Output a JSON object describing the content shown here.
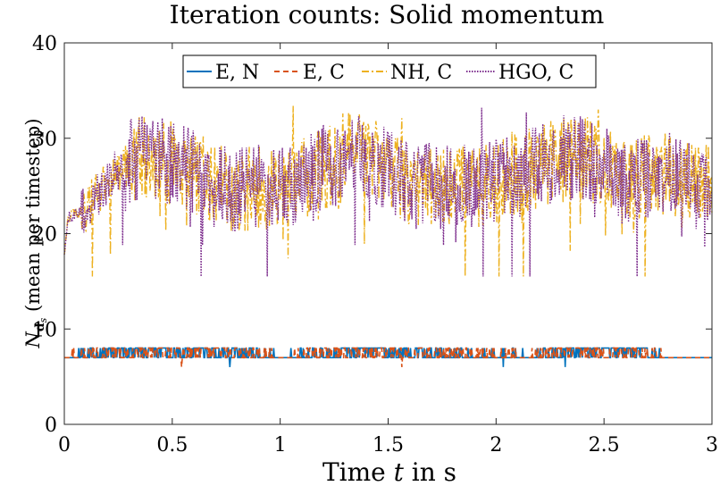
{
  "chart_data": {
    "type": "line",
    "title": "Iteration counts: Solid momentum",
    "xlabel_parts": {
      "pre": "Time ",
      "var": "t",
      "post": " in s"
    },
    "ylabel_parts": {
      "var": "N",
      "sub": "d",
      "subsub": "s",
      "post": " (mean per timestep)"
    },
    "xlim": [
      0,
      3
    ],
    "ylim": [
      0,
      40
    ],
    "xticks": [
      0,
      0.5,
      1,
      1.5,
      2,
      2.5,
      3
    ],
    "xtick_labels": [
      "0",
      "0.5",
      "1",
      "1.5",
      "2",
      "2.5",
      "3"
    ],
    "yticks": [
      0,
      10,
      20,
      30,
      40
    ],
    "ytick_labels": [
      "0",
      "10",
      "20",
      "30",
      "40"
    ],
    "grid": false,
    "legend_position": "top",
    "series": [
      {
        "name": "E, N",
        "color": "#0072BD",
        "dash": "solid",
        "baseline": 7,
        "profile": [
          [
            0,
            7
          ],
          [
            0.3,
            7.4
          ],
          [
            0.9,
            7.3
          ],
          [
            1.0,
            7
          ],
          [
            1.3,
            7.4
          ],
          [
            1.6,
            7.3
          ],
          [
            2.2,
            7.05
          ],
          [
            2.3,
            7.4
          ],
          [
            2.65,
            7.4
          ],
          [
            2.8,
            7
          ],
          [
            3.0,
            7
          ]
        ]
      },
      {
        "name": "E, C",
        "color": "#D95319",
        "dash": "dashed",
        "baseline": 7,
        "profile": [
          [
            0,
            7
          ],
          [
            0.3,
            7.4
          ],
          [
            0.9,
            7.3
          ],
          [
            1.0,
            7
          ],
          [
            1.3,
            7.4
          ],
          [
            1.6,
            7.3
          ],
          [
            2.2,
            7.05
          ],
          [
            2.3,
            7.4
          ],
          [
            2.65,
            7.4
          ],
          [
            2.8,
            7
          ],
          [
            3.0,
            7
          ]
        ]
      },
      {
        "name": "NH, C",
        "color": "#EDB120",
        "dash": "dashdot",
        "profile": [
          [
            0,
            18
          ],
          [
            0.02,
            21.8
          ],
          [
            0.1,
            22.5
          ],
          [
            0.2,
            25.5
          ],
          [
            0.3,
            27.5
          ],
          [
            0.4,
            28
          ],
          [
            0.5,
            27.5
          ],
          [
            0.6,
            26.5
          ],
          [
            0.7,
            25
          ],
          [
            0.8,
            24.5
          ],
          [
            0.9,
            25
          ],
          [
            1.0,
            24.5
          ],
          [
            1.1,
            25.5
          ],
          [
            1.2,
            27
          ],
          [
            1.27,
            27
          ],
          [
            1.3,
            29
          ],
          [
            1.4,
            28
          ],
          [
            1.5,
            26.5
          ],
          [
            1.6,
            25
          ],
          [
            1.7,
            25
          ],
          [
            1.8,
            25
          ],
          [
            1.9,
            25
          ],
          [
            2.0,
            25.5
          ],
          [
            2.1,
            26
          ],
          [
            2.2,
            27
          ],
          [
            2.3,
            28
          ],
          [
            2.4,
            28
          ],
          [
            2.5,
            27
          ],
          [
            2.6,
            25
          ],
          [
            2.7,
            26
          ],
          [
            2.8,
            26.5
          ],
          [
            2.9,
            25
          ],
          [
            3.0,
            26
          ]
        ]
      },
      {
        "name": "HGO, C",
        "color": "#7E2F8E",
        "dash": "dotted",
        "profile": [
          [
            0,
            18
          ],
          [
            0.02,
            21.8
          ],
          [
            0.1,
            22.5
          ],
          [
            0.2,
            25.5
          ],
          [
            0.3,
            27.5
          ],
          [
            0.4,
            28
          ],
          [
            0.5,
            27.5
          ],
          [
            0.6,
            26.5
          ],
          [
            0.7,
            25
          ],
          [
            0.8,
            24.5
          ],
          [
            0.9,
            25
          ],
          [
            1.0,
            24.5
          ],
          [
            1.1,
            25.5
          ],
          [
            1.2,
            27
          ],
          [
            1.27,
            27
          ],
          [
            1.3,
            29
          ],
          [
            1.4,
            28
          ],
          [
            1.5,
            26.5
          ],
          [
            1.6,
            25
          ],
          [
            1.7,
            25
          ],
          [
            1.8,
            25
          ],
          [
            1.9,
            25
          ],
          [
            2.0,
            25.5
          ],
          [
            2.1,
            26
          ],
          [
            2.2,
            27
          ],
          [
            2.3,
            28
          ],
          [
            2.4,
            28
          ],
          [
            2.5,
            27
          ],
          [
            2.6,
            25
          ],
          [
            2.7,
            26
          ],
          [
            2.8,
            26.5
          ],
          [
            2.9,
            25
          ],
          [
            3.0,
            26
          ]
        ]
      }
    ]
  }
}
